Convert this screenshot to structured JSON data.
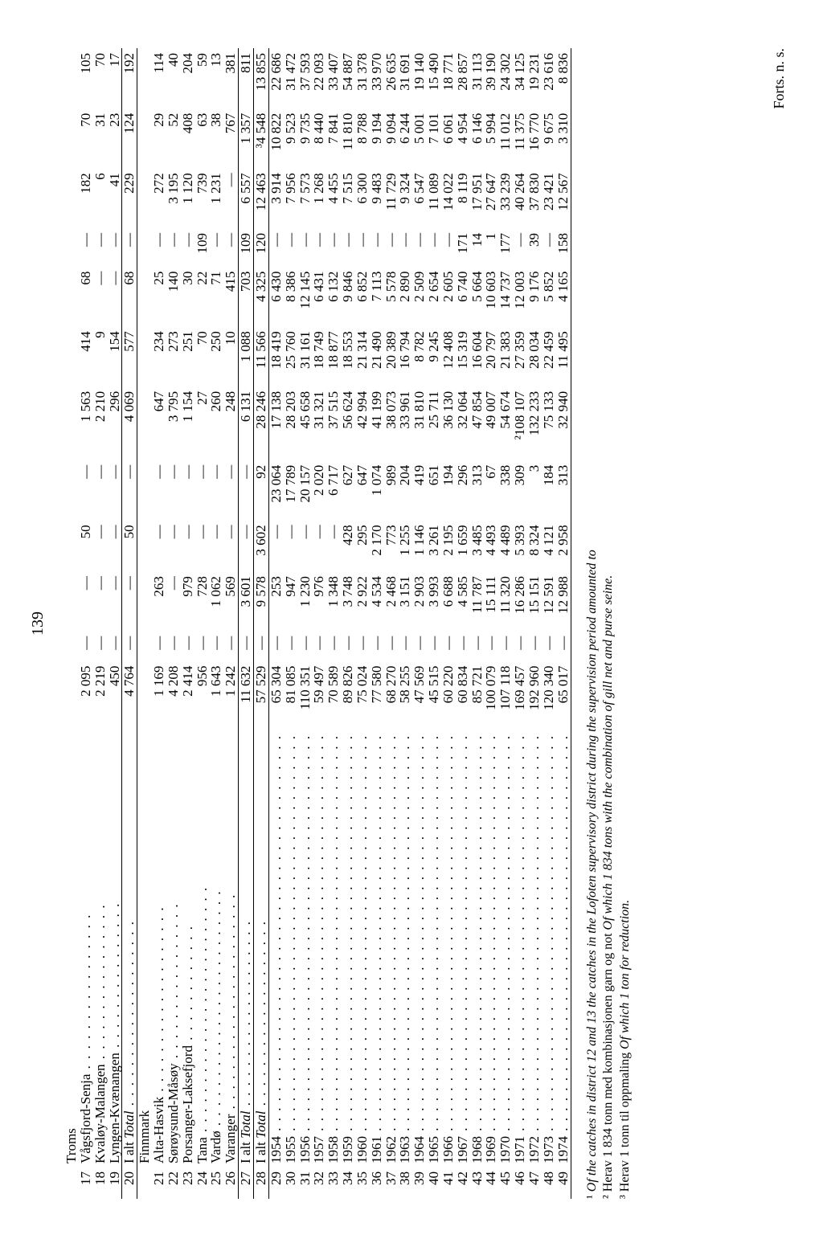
{
  "page_number": "139",
  "col_count": 12,
  "rows": [
    {
      "kind": "header",
      "label": "Troms"
    },
    {
      "idx": "17",
      "label": "Vågsfjord-Senja",
      "v": [
        "2 095",
        "—",
        "—",
        "50",
        "—",
        "1 563",
        "414",
        "68",
        "—",
        "182",
        "70",
        "105"
      ]
    },
    {
      "idx": "18",
      "label": "Kvaløy-Malangen",
      "v": [
        "2 219",
        "—",
        "—",
        "—",
        "—",
        "2 210",
        "9",
        "—",
        "—",
        "6",
        "31",
        "70"
      ]
    },
    {
      "idx": "19",
      "label": "Lyngen-Kvænangen",
      "v": [
        "450",
        "—",
        "—",
        "—",
        "—",
        "296",
        "154",
        "—",
        "—",
        "41",
        "23",
        "17"
      ],
      "rule_after": true
    },
    {
      "idx": "20",
      "label": "I alt <i>Total</i>",
      "v": [
        "4 764",
        "—",
        "—",
        "50",
        "—",
        "4 069",
        "577",
        "68",
        "—",
        "229",
        "124",
        "192"
      ],
      "rule_before": true,
      "rule_after": true,
      "italic_sum": true
    },
    {
      "kind": "header",
      "label": "Finnmark"
    },
    {
      "idx": "21",
      "label": "Alta-Hasvik",
      "v": [
        "1 169",
        "—",
        "263",
        "—",
        "—",
        "647",
        "234",
        "25",
        "—",
        "272",
        "29",
        "114"
      ]
    },
    {
      "idx": "22",
      "label": "Sørøysund-Måsøy",
      "v": [
        "4 208",
        "—",
        "—",
        "—",
        "—",
        "3 795",
        "273",
        "140",
        "—",
        "3 195",
        "52",
        "40"
      ]
    },
    {
      "idx": "23",
      "label": "Porsanger-Laksefjord",
      "v": [
        "2 414",
        "—",
        "979",
        "—",
        "—",
        "1 154",
        "251",
        "30",
        "—",
        "1 120",
        "408",
        "204"
      ]
    },
    {
      "idx": "24",
      "label": "Tana",
      "v": [
        "956",
        "—",
        "728",
        "—",
        "—",
        "27",
        "70",
        "22",
        "109",
        "739",
        "63",
        "59"
      ]
    },
    {
      "idx": "25",
      "label": "Vardø",
      "v": [
        "1 643",
        "—",
        "1 062",
        "—",
        "—",
        "260",
        "250",
        "71",
        "—",
        "1 231",
        "38",
        "13"
      ]
    },
    {
      "idx": "26",
      "label": "Varanger",
      "v": [
        "1 242",
        "—",
        "569",
        "—",
        "—",
        "248",
        "10",
        "415",
        "—",
        "—",
        "767",
        "381"
      ],
      "rule_after": true
    },
    {
      "idx": "27",
      "label": "I alt <i>Total</i>",
      "v": [
        "11 632",
        "—",
        "3 601",
        "—",
        "—",
        "6 131",
        "1 088",
        "703",
        "109",
        "6 557",
        "1 357",
        "811"
      ],
      "rule_before": true,
      "rule_after": true,
      "italic_sum": true
    },
    {
      "idx": "28",
      "label": "I alt <i>Total</i>",
      "v": [
        "57 529",
        "—",
        "9 578",
        "3 602",
        "92",
        "28 246",
        "11 566",
        "4 325",
        "120",
        "12 463",
        "³4 548",
        "13 855"
      ],
      "rule_before": true,
      "rule_after": true,
      "italic_sum": true
    },
    {
      "idx": "29",
      "label": "1954",
      "v": [
        "65 304",
        "—",
        "253",
        "—",
        "23 064",
        "17 138",
        "18 419",
        "6 430",
        "—",
        "3 914",
        "10 822",
        "22 686"
      ]
    },
    {
      "idx": "30",
      "label": "1955",
      "v": [
        "81 085",
        "—",
        "947",
        "—",
        "17 789",
        "28 203",
        "25 760",
        "8 386",
        "—",
        "7 956",
        "9 523",
        "31 472"
      ]
    },
    {
      "idx": "31",
      "label": "1956",
      "v": [
        "110 351",
        "—",
        "1 230",
        "—",
        "20 157",
        "45 658",
        "31 161",
        "12 145",
        "—",
        "7 573",
        "9 735",
        "37 593"
      ]
    },
    {
      "idx": "32",
      "label": "1957",
      "v": [
        "59 497",
        "—",
        "976",
        "—",
        "2 020",
        "31 321",
        "18 749",
        "6 431",
        "—",
        "1 268",
        "8 440",
        "22 093"
      ]
    },
    {
      "idx": "33",
      "label": "1958",
      "v": [
        "70 589",
        "—",
        "1 348",
        "—",
        "6 717",
        "37 515",
        "18 877",
        "6 132",
        "—",
        "4 455",
        "7 841",
        "33 407"
      ]
    },
    {
      "idx": "34",
      "label": "1959",
      "v": [
        "89 826",
        "—",
        "3 748",
        "428",
        "627",
        "56 624",
        "18 553",
        "9 846",
        "—",
        "7 515",
        "11 810",
        "54 887"
      ]
    },
    {
      "idx": "35",
      "label": "1960",
      "v": [
        "75 024",
        "—",
        "2 922",
        "295",
        "647",
        "42 994",
        "21 314",
        "6 852",
        "—",
        "6 300",
        "8 788",
        "31 378"
      ]
    },
    {
      "idx": "36",
      "label": "1961",
      "v": [
        "77 580",
        "—",
        "4 534",
        "2 170",
        "1 074",
        "41 199",
        "21 490",
        "7 113",
        "—",
        "9 483",
        "9 194",
        "33 970"
      ]
    },
    {
      "idx": "37",
      "label": "1962",
      "v": [
        "68 270",
        "—",
        "2 468",
        "773",
        "989",
        "38 073",
        "20 389",
        "5 578",
        "—",
        "11 729",
        "9 094",
        "26 635"
      ]
    },
    {
      "idx": "38",
      "label": "1963",
      "v": [
        "58 255",
        "—",
        "3 151",
        "1 255",
        "204",
        "33 961",
        "16 794",
        "2 890",
        "—",
        "9 324",
        "6 244",
        "31 691"
      ]
    },
    {
      "idx": "39",
      "label": "1964",
      "v": [
        "47 569",
        "—",
        "2 903",
        "1 146",
        "419",
        "31 810",
        "8 782",
        "2 509",
        "—",
        "6 547",
        "5 001",
        "19 140"
      ]
    },
    {
      "idx": "40",
      "label": "1965",
      "v": [
        "45 515",
        "—",
        "3 993",
        "3 261",
        "651",
        "25 711",
        "9 245",
        "2 654",
        "—",
        "11 089",
        "7 101",
        "15 490"
      ]
    },
    {
      "idx": "41",
      "label": "1966",
      "v": [
        "60 220",
        "—",
        "6 688",
        "2 195",
        "194",
        "36 130",
        "12 408",
        "2 605",
        "—",
        "14 022",
        "6 061",
        "18 771"
      ]
    },
    {
      "idx": "42",
      "label": "1967",
      "v": [
        "60 834",
        "—",
        "4 585",
        "1 659",
        "296",
        "32 064",
        "15 319",
        "6 740",
        "171",
        "8 119",
        "4 954",
        "28 857"
      ]
    },
    {
      "idx": "43",
      "label": "1968",
      "v": [
        "85 721",
        "—",
        "11 787",
        "3 485",
        "313",
        "47 854",
        "16 604",
        "5 664",
        "14",
        "17 951",
        "6 146",
        "31 113"
      ]
    },
    {
      "idx": "44",
      "label": "1969",
      "v": [
        "100 079",
        "—",
        "15 111",
        "4 493",
        "67",
        "49 007",
        "20 797",
        "10 603",
        "1",
        "27 647",
        "5 994",
        "39 190"
      ]
    },
    {
      "idx": "45",
      "label": "1970",
      "v": [
        "107 118",
        "—",
        "11 320",
        "4 489",
        "338",
        "54 674",
        "21 383",
        "14 737",
        "177",
        "33 239",
        "11 012",
        "24 302"
      ]
    },
    {
      "idx": "46",
      "label": "1971",
      "v": [
        "169 457",
        "—",
        "16 286",
        "5 393",
        "309",
        "²108 107",
        "27 359",
        "12 003",
        "—",
        "40 264",
        "11 375",
        "34 125"
      ]
    },
    {
      "idx": "47",
      "label": "1972",
      "v": [
        "192 960",
        "—",
        "15 151",
        "8 324",
        "3",
        "132 233",
        "28 034",
        "9 176",
        "39",
        "37 830",
        "16 770",
        "19 231"
      ]
    },
    {
      "idx": "48",
      "label": "1973",
      "v": [
        "120 340",
        "—",
        "12 591",
        "4 121",
        "184",
        "75 133",
        "22 459",
        "5 852",
        "—",
        "23 421",
        "9 675",
        "23 616"
      ]
    },
    {
      "idx": "49",
      "label": "1974",
      "v": [
        "65 017",
        "—",
        "12 988",
        "2 958",
        "313",
        "32 940",
        "11 495",
        "4 165",
        "158",
        "12 567",
        "3 310",
        "8 836"
      ],
      "rule_after": true
    }
  ],
  "footnotes": [
    "¹ <i>Of the catches in district 12 and 13 the catches in the Lofoten supervisory district during the supervision period amounted to</i>",
    "² Herav 1 834 tonn med kombinasjonen garn og not <i>Of which 1 834 tons with the combination of gill net and purse seine.</i>",
    "³ Herav 1 tonn til oppmaling <i>Of which 1 ton for reduction.</i>"
  ],
  "forts": "Forts. n. s."
}
